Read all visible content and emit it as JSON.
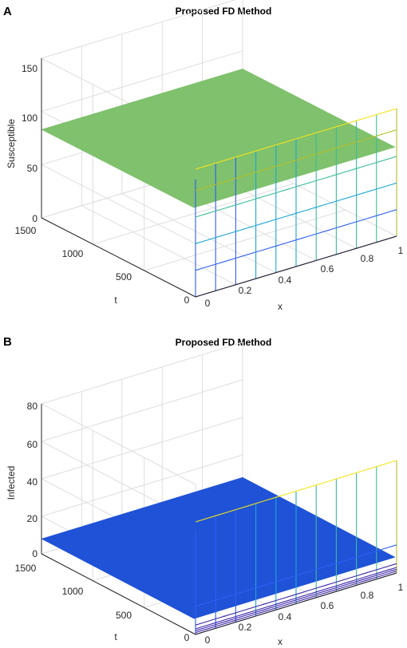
{
  "chart_data": [
    {
      "type": "surface",
      "panel_label": "A",
      "title": "Proposed FD Method",
      "xlabel": "x",
      "ylabel": "t",
      "zlabel": "Susceptible",
      "xlim": [
        0,
        1
      ],
      "ylim": [
        0,
        1500
      ],
      "zlim": [
        0,
        150
      ],
      "x_ticks": [
        "0",
        "0.2",
        "0.4",
        "0.6",
        "0.8",
        "1"
      ],
      "t_ticks": [
        "0",
        "500",
        "1000",
        "1500"
      ],
      "z_ticks": [
        "0",
        "50",
        "100",
        "150"
      ],
      "plateau_value": 83,
      "initial_wall_levels": [
        0,
        25,
        50,
        75,
        100,
        120
      ],
      "plateau_color": "#7fc16d",
      "grid": true
    },
    {
      "type": "surface",
      "panel_label": "B",
      "title": "Proposed FD Method",
      "xlabel": "x",
      "ylabel": "t",
      "zlabel": "Infected",
      "xlim": [
        0,
        1
      ],
      "ylim": [
        0,
        1500
      ],
      "zlim": [
        0,
        80
      ],
      "x_ticks": [
        "0",
        "0.2",
        "0.4",
        "0.6",
        "0.8",
        "1"
      ],
      "t_ticks": [
        "0",
        "500",
        "1000",
        "1500"
      ],
      "z_ticks": [
        "0",
        "20",
        "40",
        "60",
        "80"
      ],
      "plateau_value": 8,
      "initial_wall_levels": [
        0,
        1,
        2,
        3,
        5,
        15,
        60
      ],
      "plateau_color": "#1f52d6",
      "grid": true
    }
  ]
}
